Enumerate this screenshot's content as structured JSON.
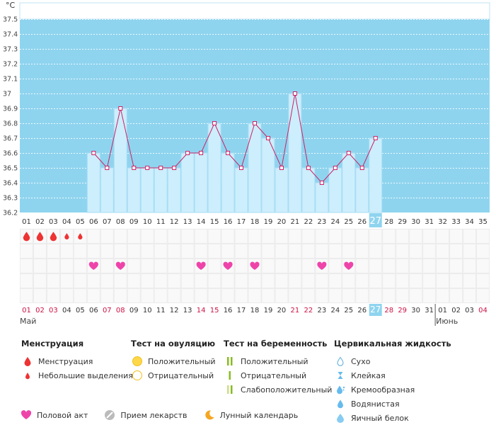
{
  "chart_data": {
    "type": "line",
    "ylabel": "°C",
    "ylim": [
      36.2,
      37.5
    ],
    "yticks": [
      36.2,
      36.3,
      36.4,
      36.5,
      36.6,
      36.7,
      36.8,
      36.9,
      37,
      37.1,
      37.2,
      37.3,
      37.4,
      37.5
    ],
    "day_labels": [
      "01",
      "02",
      "03",
      "04",
      "05",
      "06",
      "07",
      "08",
      "09",
      "10",
      "11",
      "12",
      "13",
      "14",
      "15",
      "16",
      "17",
      "18",
      "19",
      "20",
      "21",
      "22",
      "23",
      "24",
      "25",
      "26",
      "27",
      "28",
      "29",
      "30",
      "31",
      "32",
      "33",
      "34",
      "35"
    ],
    "highlight_day": "27",
    "series": [
      {
        "days": [
          6,
          7,
          8,
          9,
          10,
          11,
          12,
          13,
          14,
          15,
          16,
          17,
          18,
          19,
          20,
          21,
          22,
          23,
          24,
          25,
          26,
          27
        ],
        "values": [
          36.6,
          36.5,
          36.9,
          36.5,
          36.5,
          36.5,
          36.5,
          36.6,
          36.6,
          36.8,
          36.6,
          36.5,
          36.8,
          36.7,
          36.5,
          37.0,
          36.5,
          36.4,
          36.5,
          36.6,
          36.5,
          36.7
        ]
      }
    ],
    "menstruation_big_days": [
      1,
      2,
      3
    ],
    "menstruation_small_days": [
      4,
      5
    ],
    "intercourse_days": [
      6,
      8,
      14,
      16,
      18,
      23,
      25
    ],
    "date_labels": [
      "01",
      "02",
      "03",
      "04",
      "05",
      "06",
      "07",
      "08",
      "09",
      "10",
      "11",
      "12",
      "13",
      "14",
      "15",
      "16",
      "17",
      "18",
      "19",
      "20",
      "21",
      "22",
      "23",
      "24",
      "25",
      "26",
      "27",
      "28",
      "29",
      "30",
      "31",
      "01",
      "02",
      "03",
      "04"
    ],
    "weekend_days": [
      1,
      2,
      3,
      7,
      8,
      14,
      15,
      21,
      22,
      28,
      29,
      35
    ],
    "month_labels": [
      {
        "day": 1,
        "name": "Май"
      },
      {
        "day": 32,
        "name": "Июнь"
      }
    ],
    "colors": {
      "sky": "#8fd4ef",
      "bar": "#cdeefc",
      "bar_border": "#a9def5",
      "line": "#cc2266",
      "highlight": "#8fd4ef",
      "weekend": "#cc1144",
      "blood": "#ee3333",
      "heart": "#ee44aa"
    }
  },
  "legend": {
    "menstruation": {
      "title": "Менструация",
      "items": [
        "Менструация",
        "Небольшие выделения"
      ]
    },
    "ovulation": {
      "title": "Тест на овуляцию",
      "items": [
        "Положительный",
        "Отрицательный"
      ]
    },
    "pregnancy": {
      "title": "Тест на беременность",
      "items": [
        "Положительный",
        "Отрицательный",
        "Слабоположительный"
      ]
    },
    "cervical": {
      "title": "Цервикальная жидкость",
      "items": [
        "Сухо",
        "Клейкая",
        "Кремообразная",
        "Водянистая",
        "Яичный белок"
      ]
    },
    "bottom": {
      "intercourse": "Половой акт",
      "medicine": "Прием лекарств",
      "lunar": "Лунный календарь"
    }
  }
}
